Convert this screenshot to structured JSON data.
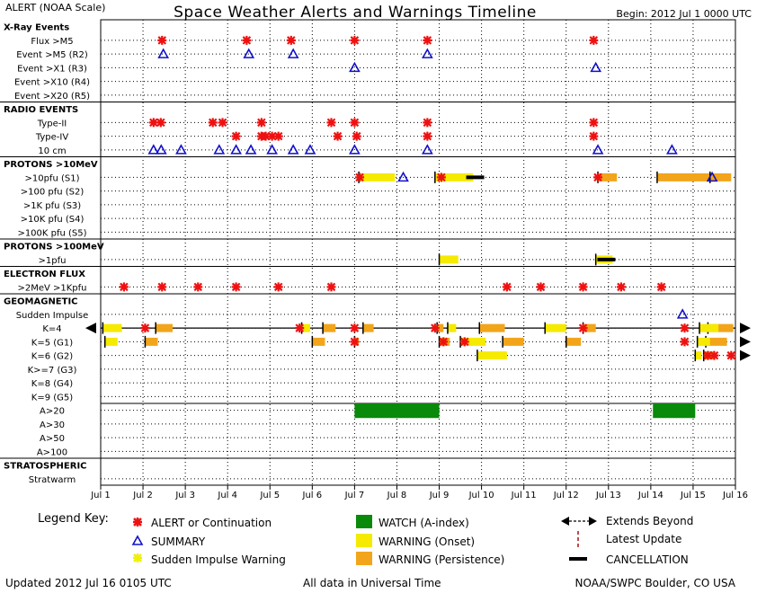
{
  "header": {
    "left": "ALERT (NOAA Scale)",
    "title": "Space Weather Alerts and Warnings Timeline",
    "right": "Begin: 2012 Jul 1 0000 UTC"
  },
  "footer": {
    "updated": "Updated 2012 Jul 16 0105 UTC",
    "data_note": "All data in Universal Time",
    "source": "NOAA/SWPC Boulder, CO USA"
  },
  "legend": {
    "title": "Legend Key:",
    "alert": "ALERT or Continuation",
    "summary": "SUMMARY",
    "sudden_impulse": "Sudden Impulse Warning",
    "watch": "WATCH (A-index)",
    "warning_onset": "WARNING (Onset)",
    "warning_persistence": "WARNING (Persistence)",
    "extends_beyond": "Extends Beyond",
    "latest_update": "Latest Update",
    "cancellation": "CANCELLATION"
  },
  "colors": {
    "alert": "#ee1111",
    "summary": "#1111cc",
    "sudden_impulse": "#f0f000",
    "watch": "#0a8a0a",
    "warning_onset": "#f5ea00",
    "warning_persistence": "#f2a51a",
    "latest_update": "#aa1111"
  },
  "chart_data": {
    "type": "timeline",
    "x_ticks": [
      "Jul 1",
      "Jul 2",
      "Jul 3",
      "Jul 4",
      "Jul 5",
      "Jul 6",
      "Jul 7",
      "Jul 8",
      "Jul 9",
      "Jul 10",
      "Jul 11",
      "Jul 12",
      "Jul 13",
      "Jul 14",
      "Jul 15",
      "Jul 16"
    ],
    "xlim": [
      1,
      16
    ],
    "grid": true,
    "rows": [
      {
        "id": "xray",
        "label": "X-Ray Events",
        "header": true
      },
      {
        "id": "flux_m5",
        "label": "Flux >M5"
      },
      {
        "id": "event_m5",
        "label": "Event >M5 (R2)"
      },
      {
        "id": "event_x1",
        "label": "Event >X1 (R3)"
      },
      {
        "id": "event_x10",
        "label": "Event >X10 (R4)"
      },
      {
        "id": "event_x20",
        "label": "Event >X20 (R5)"
      },
      {
        "id": "radio",
        "label": "RADIO EVENTS",
        "header": true
      },
      {
        "id": "type2",
        "label": "Type-II"
      },
      {
        "id": "type4",
        "label": "Type-IV"
      },
      {
        "id": "cm10",
        "label": "10 cm"
      },
      {
        "id": "protons10",
        "label": "PROTONS >10MeV",
        "header": true
      },
      {
        "id": "p_s1",
        "label": ">10pfu (S1)"
      },
      {
        "id": "p_s2",
        "label": ">100 pfu (S2)"
      },
      {
        "id": "p_s3",
        "label": ">1K pfu (S3)"
      },
      {
        "id": "p_s4",
        "label": ">10K pfu (S4)"
      },
      {
        "id": "p_s5",
        "label": ">100K pfu (S5)"
      },
      {
        "id": "protons100",
        "label": "PROTONS >100MeV",
        "header": true
      },
      {
        "id": "p100_1",
        "label": ">1pfu"
      },
      {
        "id": "electron",
        "label": "ELECTRON FLUX",
        "header": true
      },
      {
        "id": "e_2mev",
        "label": ">2MeV >1Kpfu"
      },
      {
        "id": "geomag",
        "label": "GEOMAGNETIC",
        "header": true
      },
      {
        "id": "si",
        "label": "Sudden Impulse"
      },
      {
        "id": "k4",
        "label": "K=4"
      },
      {
        "id": "k5",
        "label": "K=5 (G1)"
      },
      {
        "id": "k6",
        "label": "K=6 (G2)"
      },
      {
        "id": "k7",
        "label": "K>=7 (G3)"
      },
      {
        "id": "k8",
        "label": "K=8 (G4)"
      },
      {
        "id": "k9",
        "label": "K=9 (G5)"
      },
      {
        "id": "a20",
        "label": "A>20"
      },
      {
        "id": "a30",
        "label": "A>30"
      },
      {
        "id": "a50",
        "label": "A>50"
      },
      {
        "id": "a100",
        "label": "A>100"
      },
      {
        "id": "strat",
        "label": "STRATOSPHERIC",
        "header": true
      },
      {
        "id": "stratwarm",
        "label": "Stratwarm"
      }
    ],
    "alerts": [
      {
        "row": "flux_m5",
        "t": [
          2.45,
          4.45,
          5.5,
          7.0,
          8.72,
          12.65
        ]
      },
      {
        "row": "type2",
        "t": [
          2.25,
          2.42,
          3.65,
          3.88,
          4.8,
          6.45,
          7.0,
          8.72,
          12.65
        ]
      },
      {
        "row": "type4",
        "t": [
          4.2,
          4.8,
          4.9,
          5.05,
          5.2,
          6.6,
          7.05,
          8.72,
          12.65
        ]
      },
      {
        "row": "p_s1",
        "t": [
          7.12,
          9.05,
          12.75
        ]
      },
      {
        "row": "e_2mev",
        "t": [
          1.55,
          2.45,
          3.3,
          4.2,
          5.2,
          6.45,
          10.6,
          11.4,
          12.4,
          13.3,
          14.25
        ]
      },
      {
        "row": "k4",
        "t": [
          2.05,
          5.7,
          7.0,
          8.9,
          12.4,
          14.8
        ]
      },
      {
        "row": "k5",
        "t": [
          7.0,
          9.1,
          9.6,
          14.8
        ]
      },
      {
        "row": "k6",
        "t": [
          15.35,
          15.5,
          15.9
        ]
      }
    ],
    "summaries": [
      {
        "row": "event_m5",
        "t": [
          2.48,
          4.5,
          5.55,
          8.72
        ]
      },
      {
        "row": "event_x1",
        "t": [
          7.0,
          12.7
        ]
      },
      {
        "row": "cm10",
        "t": [
          2.25,
          2.43,
          2.9,
          3.8,
          4.2,
          4.55,
          5.05,
          5.55,
          5.95,
          7.0,
          8.72,
          12.75,
          14.5
        ]
      },
      {
        "row": "p_s1",
        "t": [
          8.15,
          15.45
        ]
      },
      {
        "row": "si",
        "t": [
          14.75
        ]
      }
    ],
    "watches": [
      {
        "row": "a20",
        "start": 7.0,
        "end": 9.0
      },
      {
        "row": "a20",
        "start": 14.05,
        "end": 15.05
      }
    ],
    "warnings_onset": [
      {
        "row": "p_s1",
        "start": 7.1,
        "end": 7.95
      },
      {
        "row": "p_s1",
        "start": 8.9,
        "end": 9.8
      },
      {
        "row": "p100_1",
        "start": 9.0,
        "end": 9.45
      },
      {
        "row": "p100_1",
        "start": 12.7,
        "end": 13.1
      },
      {
        "row": "k4",
        "start": 1.05,
        "end": 1.5
      },
      {
        "row": "k4",
        "start": 5.75,
        "end": 5.95
      },
      {
        "row": "k4",
        "start": 9.2,
        "end": 9.4
      },
      {
        "row": "k4",
        "start": 11.5,
        "end": 12.0
      },
      {
        "row": "k4",
        "start": 15.15,
        "end": 15.6
      },
      {
        "row": "k5",
        "start": 1.1,
        "end": 1.4
      },
      {
        "row": "k5",
        "start": 9.5,
        "end": 10.1
      },
      {
        "row": "k5",
        "start": 15.1,
        "end": 15.4
      },
      {
        "row": "k6",
        "start": 9.9,
        "end": 10.6
      },
      {
        "row": "k6",
        "start": 15.05,
        "end": 15.2
      }
    ],
    "warnings_persistence": [
      {
        "row": "p_s1",
        "start": 12.75,
        "end": 13.2
      },
      {
        "row": "p_s1",
        "start": 14.15,
        "end": 15.4
      },
      {
        "row": "p_s1",
        "start": 15.4,
        "end": 15.9
      },
      {
        "row": "k4",
        "start": 2.3,
        "end": 2.7
      },
      {
        "row": "k4",
        "start": 6.25,
        "end": 6.55
      },
      {
        "row": "k4",
        "start": 7.2,
        "end": 7.45
      },
      {
        "row": "k4",
        "start": 8.95,
        "end": 9.1
      },
      {
        "row": "k4",
        "start": 9.95,
        "end": 10.55
      },
      {
        "row": "k4",
        "start": 12.4,
        "end": 12.7
      },
      {
        "row": "k4",
        "start": 15.35,
        "end": 15.95
      },
      {
        "row": "k5",
        "start": 2.05,
        "end": 2.35
      },
      {
        "row": "k5",
        "start": 6.0,
        "end": 6.3
      },
      {
        "row": "k5",
        "start": 7.0,
        "end": 7.1
      },
      {
        "row": "k5",
        "start": 9.0,
        "end": 9.25
      },
      {
        "row": "k5",
        "start": 10.5,
        "end": 11.0
      },
      {
        "row": "k5",
        "start": 12.0,
        "end": 12.35
      },
      {
        "row": "k5",
        "start": 15.3,
        "end": 15.8
      },
      {
        "row": "k6",
        "start": 15.25,
        "end": 15.5
      }
    ],
    "cancellations": [
      {
        "row": "p_s1",
        "t": 9.85
      },
      {
        "row": "p100_1",
        "t": 12.95
      }
    ],
    "extends_beyond": [
      {
        "row": "k4",
        "side": "left"
      },
      {
        "row": "k4",
        "side": "right"
      },
      {
        "row": "k5",
        "side": "right"
      },
      {
        "row": "k6",
        "side": "right"
      }
    ]
  }
}
